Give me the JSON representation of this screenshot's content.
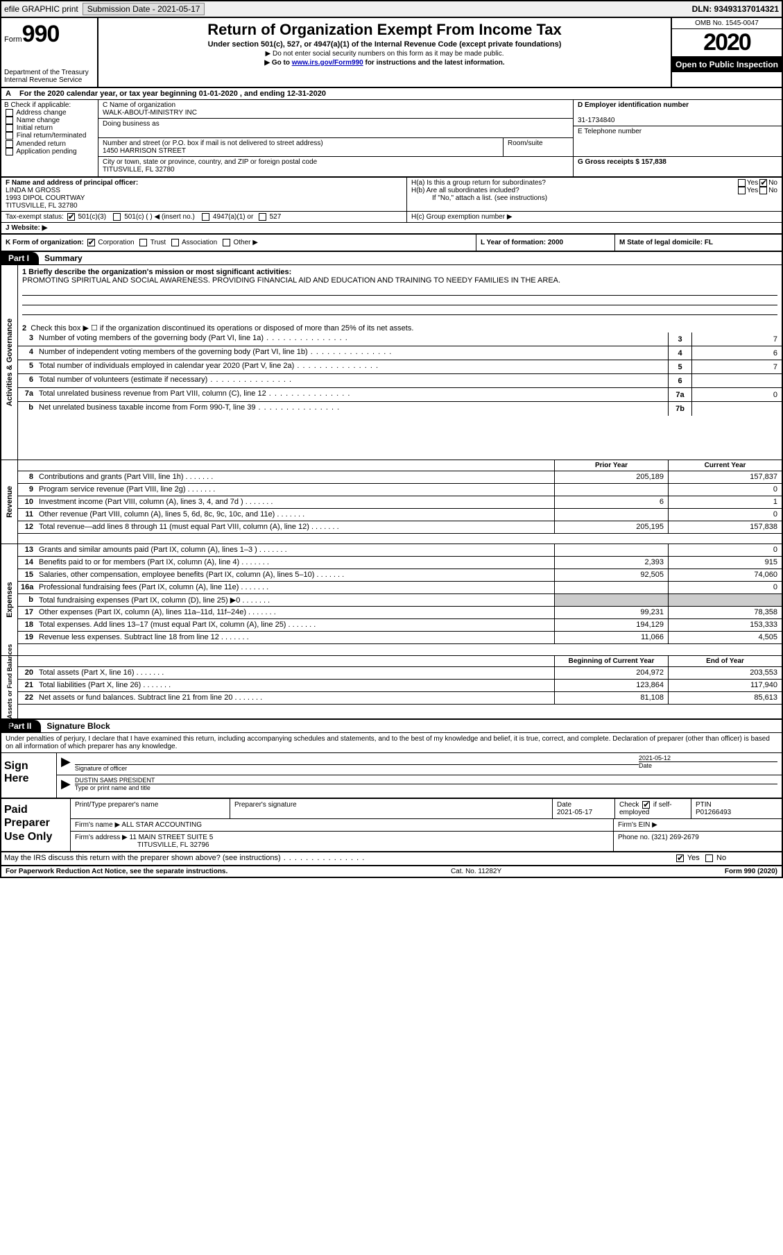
{
  "topbar": {
    "efile": "efile GRAPHIC print",
    "submission_label": "Submission Date - 2021-05-17",
    "dln": "DLN: 93493137014321"
  },
  "header": {
    "form_word": "Form",
    "form_num": "990",
    "dept1": "Department of the Treasury",
    "dept2": "Internal Revenue Service",
    "title": "Return of Organization Exempt From Income Tax",
    "subtitle": "Under section 501(c), 527, or 4947(a)(1) of the Internal Revenue Code (except private foundations)",
    "note1": "▶ Do not enter social security numbers on this form as it may be made public.",
    "note2_pre": "▶ Go to ",
    "note2_link": "www.irs.gov/Form990",
    "note2_post": " for instructions and the latest information.",
    "omb": "OMB No. 1545-0047",
    "year": "2020",
    "inspect": "Open to Public Inspection"
  },
  "rowA": {
    "label": "A",
    "text": "For the 2020 calendar year, or tax year beginning 01-01-2020     , and ending 12-31-2020"
  },
  "colB": {
    "label": "B Check if applicable:",
    "items": [
      "Address change",
      "Name change",
      "Initial return",
      "Final return/terminated",
      "Amended return",
      "Application pending"
    ]
  },
  "colC": {
    "name_lbl": "C Name of organization",
    "name": "WALK-ABOUT-MINISTRY INC",
    "dba_lbl": "Doing business as",
    "street_lbl": "Number and street (or P.O. box if mail is not delivered to street address)",
    "room_lbl": "Room/suite",
    "street": "1450 HARRISON STREET",
    "city_lbl": "City or town, state or province, country, and ZIP or foreign postal code",
    "city": "TITUSVILLE, FL  32780"
  },
  "colD": {
    "ein_lbl": "D Employer identification number",
    "ein": "31-1734840",
    "tel_lbl": "E Telephone number",
    "gross_lbl": "G Gross receipts $ 157,838"
  },
  "rowF": {
    "lbl": "F  Name and address of principal officer:",
    "name": "LINDA M GROSS",
    "addr1": "1993 DIPOL COURTWAY",
    "addr2": "TITUSVILLE, FL  32780"
  },
  "rowH": {
    "ha": "H(a)  Is this a group return for subordinates?",
    "hb": "H(b)  Are all subordinates included?",
    "hb_note": "If \"No,\" attach a list. (see instructions)",
    "hc": "H(c)  Group exemption number ▶"
  },
  "taxStatus": {
    "lbl": "Tax-exempt status:",
    "a": "501(c)(3)",
    "b": "501(c) (   ) ◀ (insert no.)",
    "c": "4947(a)(1) or",
    "d": "527"
  },
  "rowJ": {
    "lbl": "J   Website: ▶"
  },
  "rowK": {
    "lbl": "K Form of organization:",
    "opts": [
      "Corporation",
      "Trust",
      "Association",
      "Other ▶"
    ],
    "year_lbl": "L Year of formation: 2000",
    "state_lbl": "M State of legal domicile: FL"
  },
  "part1": {
    "tab": "Part I",
    "title": "Summary"
  },
  "summary": {
    "q1_lbl": "1   Briefly describe the organization's mission or most significant activities:",
    "q1_text": "PROMOTING SPIRITUAL AND SOCIAL AWARENESS. PROVIDING FINANCIAL AID AND EDUCATION AND TRAINING TO NEEDY FAMILIES IN THE AREA.",
    "vtab1": "Activities & Governance",
    "q2": "Check this box ▶ ☐ if the organization discontinued its operations or disposed of more than 25% of its net assets.",
    "lines_single": [
      {
        "n": "3",
        "t": "Number of voting members of the governing body (Part VI, line 1a)",
        "box": "3",
        "v": "7"
      },
      {
        "n": "4",
        "t": "Number of independent voting members of the governing body (Part VI, line 1b)",
        "box": "4",
        "v": "6"
      },
      {
        "n": "5",
        "t": "Total number of individuals employed in calendar year 2020 (Part V, line 2a)",
        "box": "5",
        "v": "7"
      },
      {
        "n": "6",
        "t": "Total number of volunteers (estimate if necessary)",
        "box": "6",
        "v": ""
      },
      {
        "n": "7a",
        "t": "Total unrelated business revenue from Part VIII, column (C), line 12",
        "box": "7a",
        "v": "0"
      },
      {
        "n": "b",
        "t": "Net unrelated business taxable income from Form 990-T, line 39",
        "box": "7b",
        "v": ""
      }
    ],
    "hdr_prior": "Prior Year",
    "hdr_curr": "Current Year",
    "vtab2": "Revenue",
    "rev": [
      {
        "n": "8",
        "t": "Contributions and grants (Part VIII, line 1h)",
        "p": "205,189",
        "c": "157,837"
      },
      {
        "n": "9",
        "t": "Program service revenue (Part VIII, line 2g)",
        "p": "",
        "c": "0"
      },
      {
        "n": "10",
        "t": "Investment income (Part VIII, column (A), lines 3, 4, and 7d )",
        "p": "6",
        "c": "1"
      },
      {
        "n": "11",
        "t": "Other revenue (Part VIII, column (A), lines 5, 6d, 8c, 9c, 10c, and 11e)",
        "p": "",
        "c": "0"
      },
      {
        "n": "12",
        "t": "Total revenue—add lines 8 through 11 (must equal Part VIII, column (A), line 12)",
        "p": "205,195",
        "c": "157,838"
      }
    ],
    "vtab3": "Expenses",
    "exp": [
      {
        "n": "13",
        "t": "Grants and similar amounts paid (Part IX, column (A), lines 1–3 )",
        "p": "",
        "c": "0"
      },
      {
        "n": "14",
        "t": "Benefits paid to or for members (Part IX, column (A), line 4)",
        "p": "2,393",
        "c": "915"
      },
      {
        "n": "15",
        "t": "Salaries, other compensation, employee benefits (Part IX, column (A), lines 5–10)",
        "p": "92,505",
        "c": "74,060"
      },
      {
        "n": "16a",
        "t": "Professional fundraising fees (Part IX, column (A), line 11e)",
        "p": "",
        "c": "0"
      },
      {
        "n": "b",
        "t": "Total fundraising expenses (Part IX, column (D), line 25) ▶0",
        "p": "SHADE",
        "c": "SHADE"
      },
      {
        "n": "17",
        "t": "Other expenses (Part IX, column (A), lines 11a–11d, 11f–24e)",
        "p": "99,231",
        "c": "78,358"
      },
      {
        "n": "18",
        "t": "Total expenses. Add lines 13–17 (must equal Part IX, column (A), line 25)",
        "p": "194,129",
        "c": "153,333"
      },
      {
        "n": "19",
        "t": "Revenue less expenses. Subtract line 18 from line 12",
        "p": "11,066",
        "c": "4,505"
      }
    ],
    "hdr_beg": "Beginning of Current Year",
    "hdr_end": "End of Year",
    "vtab4": "Net Assets or Fund Balances",
    "net": [
      {
        "n": "20",
        "t": "Total assets (Part X, line 16)",
        "p": "204,972",
        "c": "203,553"
      },
      {
        "n": "21",
        "t": "Total liabilities (Part X, line 26)",
        "p": "123,864",
        "c": "117,940"
      },
      {
        "n": "22",
        "t": "Net assets or fund balances. Subtract line 21 from line 20",
        "p": "81,108",
        "c": "85,613"
      }
    ]
  },
  "part2": {
    "tab": "Part II",
    "title": "Signature Block"
  },
  "decl": "Under penalties of perjury, I declare that I have examined this return, including accompanying schedules and statements, and to the best of my knowledge and belief, it is true, correct, and complete. Declaration of preparer (other than officer) is based on all information of which preparer has any knowledge.",
  "sign": {
    "lbl": "Sign Here",
    "sig_lbl": "Signature of officer",
    "date_lbl": "Date",
    "date": "2021-05-12",
    "name": "DUSTIN SAMS  PRESIDENT",
    "name_lbl": "Type or print name and title"
  },
  "prep": {
    "lbl": "Paid Preparer Use Only",
    "h1": "Print/Type preparer's name",
    "h2": "Preparer's signature",
    "h3": "Date",
    "date": "2021-05-17",
    "h4_a": "Check",
    "h4_b": "if self-employed",
    "h5": "PTIN",
    "ptin": "P01266493",
    "firm_name_lbl": "Firm's name    ▶",
    "firm_name": "ALL STAR ACCOUNTING",
    "firm_ein_lbl": "Firm's EIN ▶",
    "firm_addr_lbl": "Firm's address ▶",
    "firm_addr1": "11 MAIN STREET SUITE 5",
    "firm_addr2": "TITUSVILLE, FL  32796",
    "phone_lbl": "Phone no. (321) 269-2679"
  },
  "discuss": "May the IRS discuss this return with the preparer shown above? (see instructions)",
  "foot": {
    "left": "For Paperwork Reduction Act Notice, see the separate instructions.",
    "mid": "Cat. No. 11282Y",
    "right": "Form 990 (2020)"
  },
  "yn": {
    "yes": "Yes",
    "no": "No"
  }
}
